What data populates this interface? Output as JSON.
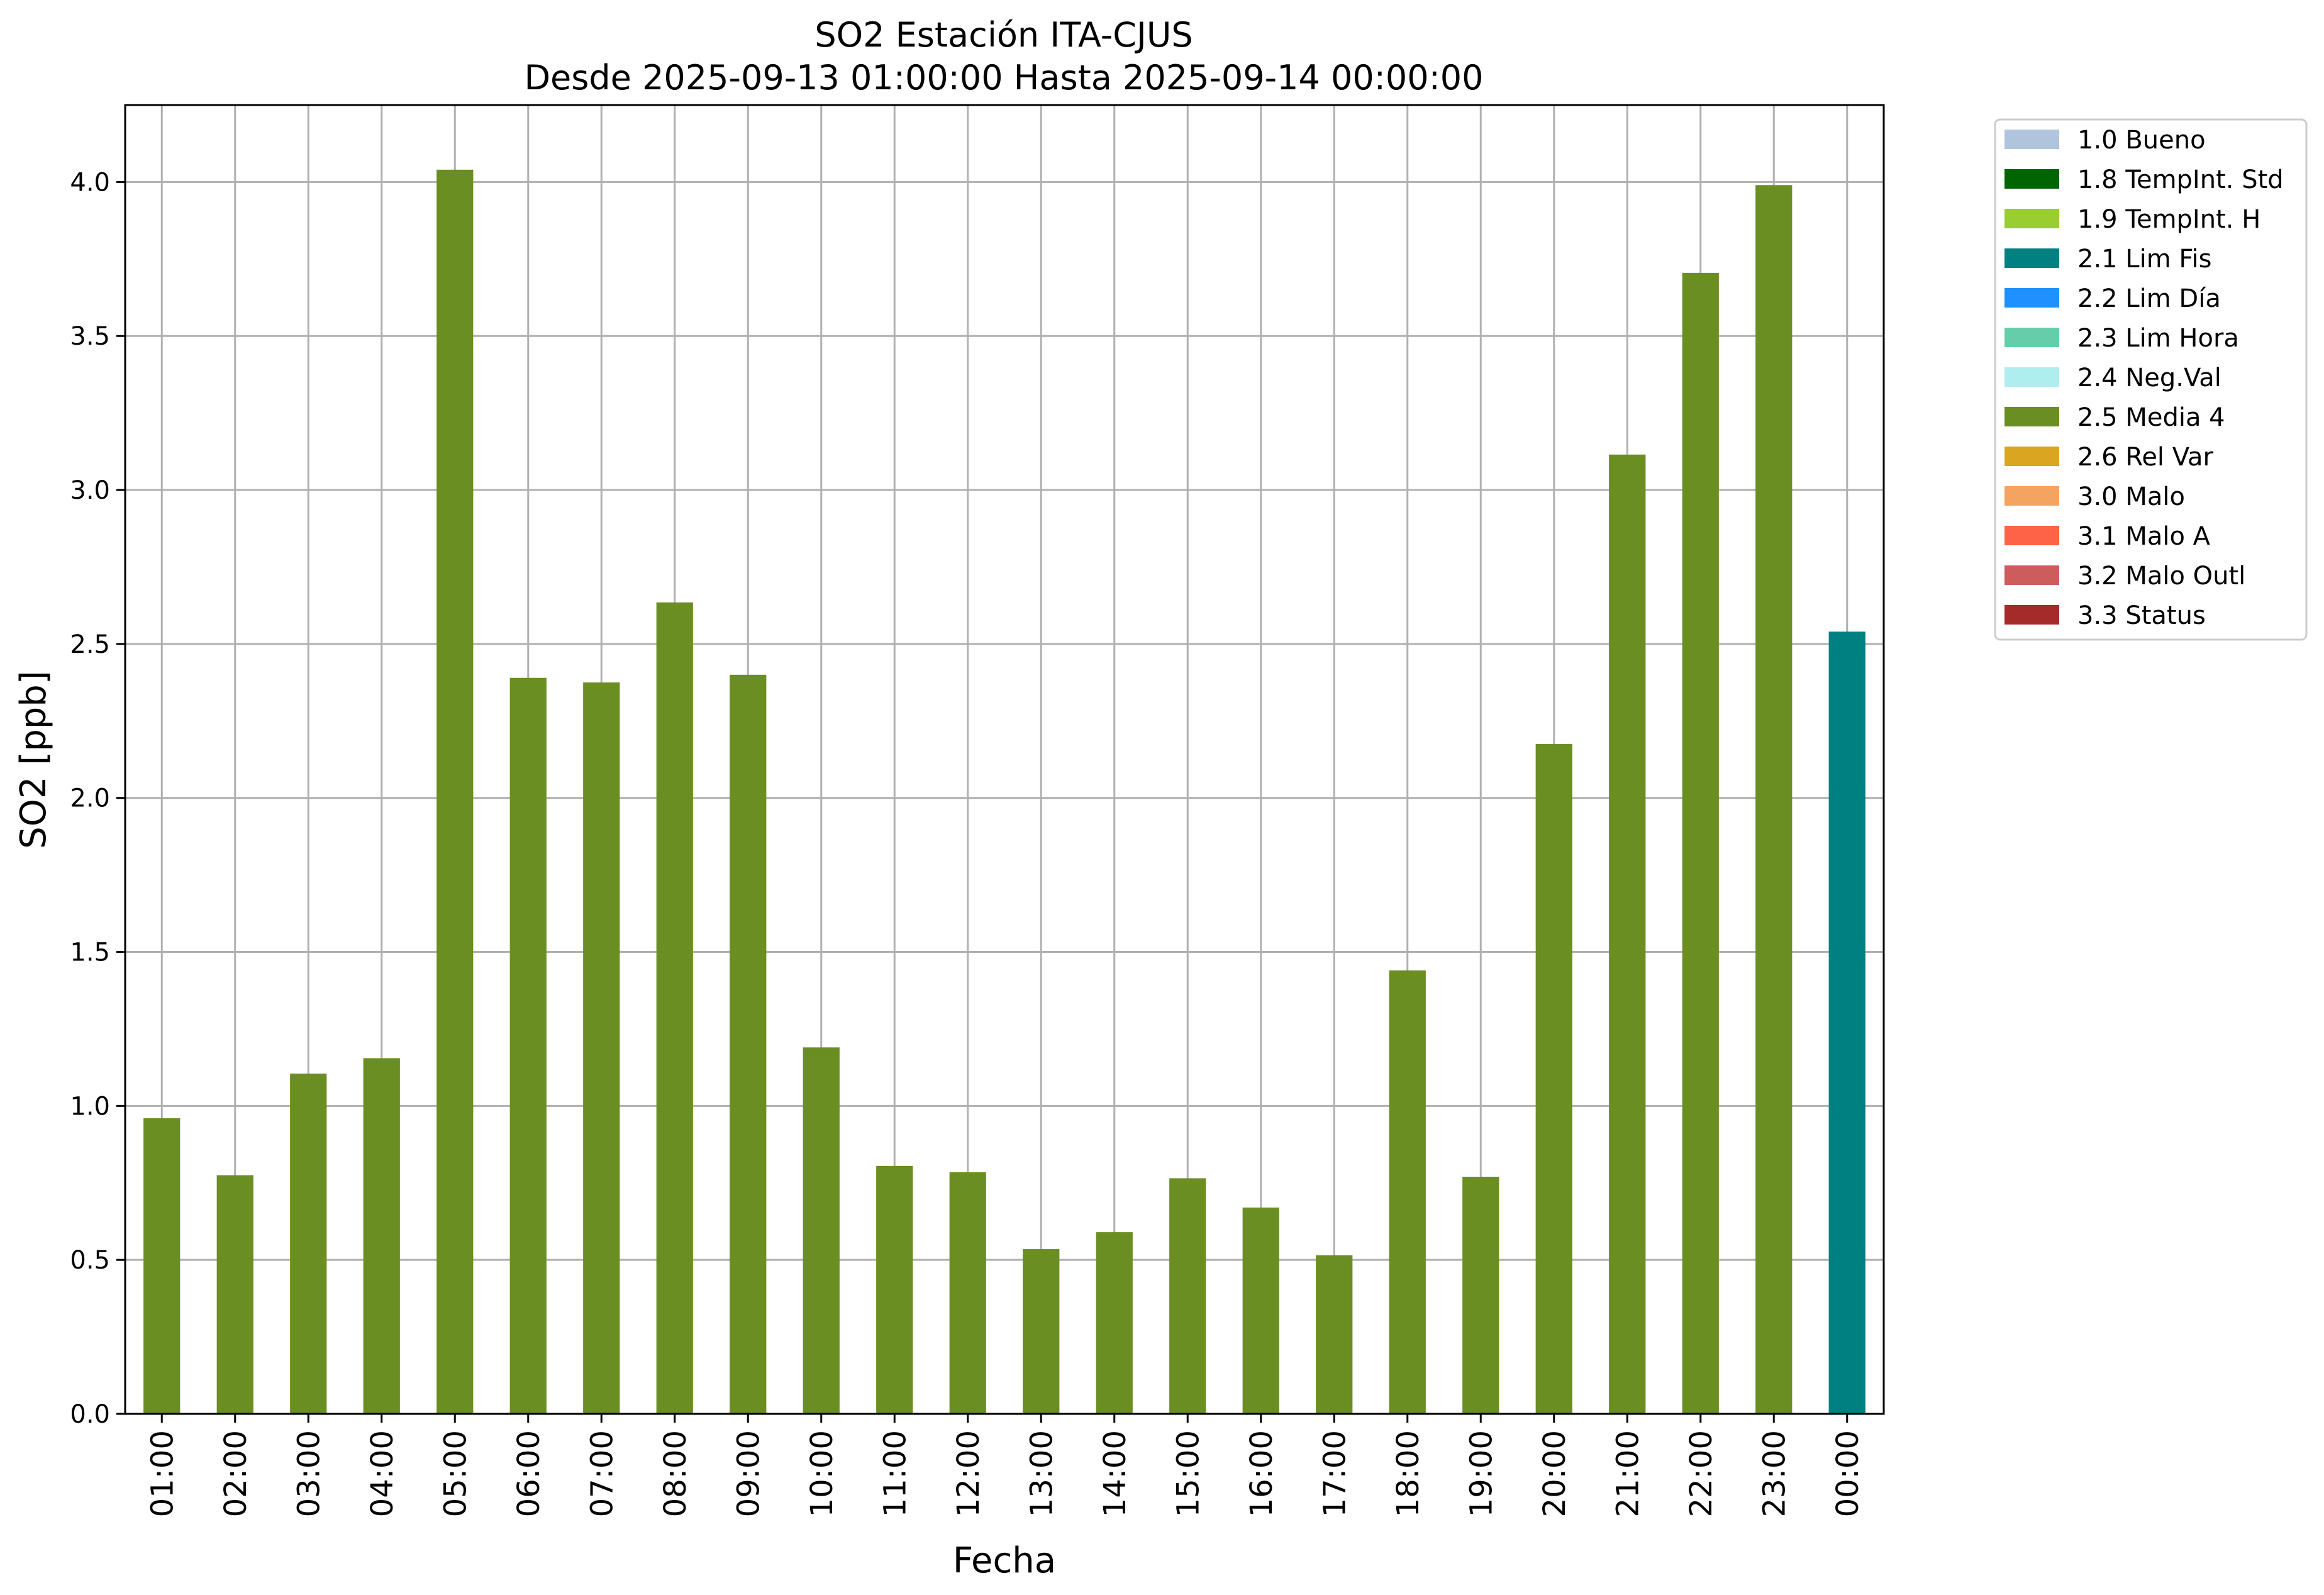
{
  "chart_data": {
    "type": "bar",
    "title": "SO2 Estación ITA-CJUS",
    "subtitle": "Desde 2025-09-13 01:00:00 Hasta 2025-09-14 00:00:00",
    "xlabel": "Fecha",
    "ylabel": "SO2 [ppb]",
    "ylim": [
      0,
      4.25
    ],
    "yticks": [
      "0.0",
      "0.5",
      "1.0",
      "1.5",
      "2.0",
      "2.5",
      "3.0",
      "3.5",
      "4.0"
    ],
    "grid": true,
    "legend_position": "outside-top-right",
    "categories": [
      "01:00",
      "02:00",
      "03:00",
      "04:00",
      "05:00",
      "06:00",
      "07:00",
      "08:00",
      "09:00",
      "10:00",
      "11:00",
      "12:00",
      "13:00",
      "14:00",
      "15:00",
      "16:00",
      "17:00",
      "18:00",
      "19:00",
      "20:00",
      "21:00",
      "22:00",
      "23:00",
      "00:00"
    ],
    "values": [
      0.96,
      0.775,
      1.105,
      1.155,
      4.04,
      2.39,
      2.375,
      2.635,
      2.4,
      1.19,
      0.805,
      0.785,
      0.535,
      0.59,
      0.765,
      0.67,
      0.515,
      1.44,
      0.77,
      2.175,
      3.115,
      3.705,
      3.99,
      2.54
    ],
    "flags": [
      "2.5 Media 4",
      "2.5 Media 4",
      "2.5 Media 4",
      "2.5 Media 4",
      "2.5 Media 4",
      "2.5 Media 4",
      "2.5 Media 4",
      "2.5 Media 4",
      "2.5 Media 4",
      "2.5 Media 4",
      "2.5 Media 4",
      "2.5 Media 4",
      "2.5 Media 4",
      "2.5 Media 4",
      "2.5 Media 4",
      "2.5 Media 4",
      "2.5 Media 4",
      "2.5 Media 4",
      "2.5 Media 4",
      "2.5 Media 4",
      "2.5 Media 4",
      "2.5 Media 4",
      "2.5 Media 4",
      "2.1 Lim Fis"
    ],
    "legend": [
      {
        "label": "1.0 Bueno",
        "color": "#b0c4de"
      },
      {
        "label": "1.8 TempInt. Std",
        "color": "#006400"
      },
      {
        "label": "1.9 TempInt. H",
        "color": "#9acd32"
      },
      {
        "label": "2.1 Lim Fis",
        "color": "#008080"
      },
      {
        "label": "2.2 Lim Día",
        "color": "#1e90ff"
      },
      {
        "label": "2.3 Lim Hora",
        "color": "#66cdaa"
      },
      {
        "label": "2.4 Neg.Val",
        "color": "#afeeee"
      },
      {
        "label": "2.5 Media 4",
        "color": "#6b8e23"
      },
      {
        "label": "2.6 Rel Var",
        "color": "#daa520"
      },
      {
        "label": "3.0 Malo",
        "color": "#f4a460"
      },
      {
        "label": "3.1 Malo A",
        "color": "#ff6347"
      },
      {
        "label": "3.2 Malo Outl",
        "color": "#cd5c5c"
      },
      {
        "label": "3.3 Status",
        "color": "#a52a2a"
      }
    ]
  }
}
